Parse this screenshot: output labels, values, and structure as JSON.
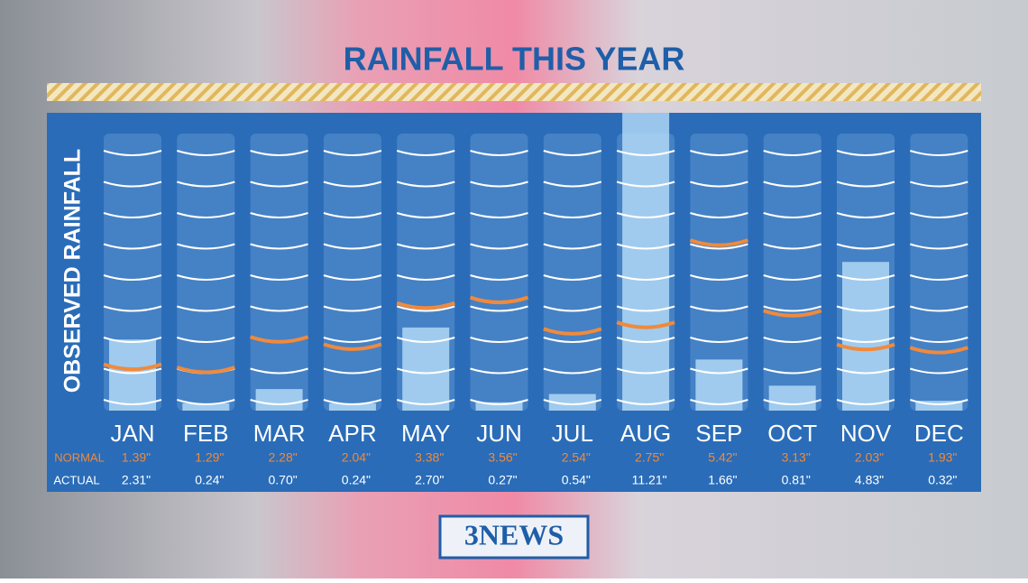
{
  "chart_data": {
    "type": "bar",
    "title": "RAINFALL THIS YEAR",
    "y_label": "OBSERVED RAINFALL",
    "categories": [
      "JAN",
      "FEB",
      "MAR",
      "APR",
      "MAY",
      "JUN",
      "JUL",
      "AUG",
      "SEP",
      "OCT",
      "NOV",
      "DEC"
    ],
    "ylim": [
      0,
      9
    ],
    "series": [
      {
        "name": "NORMAL",
        "color": "#f08a3c",
        "values": [
          1.39,
          1.29,
          2.28,
          2.04,
          3.38,
          3.56,
          2.54,
          2.75,
          5.42,
          3.13,
          2.03,
          1.93
        ],
        "value_labels": [
          "1.39\"",
          "1.29\"",
          "2.28\"",
          "2.04\"",
          "3.38\"",
          "3.56\"",
          "2.54\"",
          "2.75\"",
          "5.42\"",
          "3.13\"",
          "2.03\"",
          "1.93\""
        ]
      },
      {
        "name": "ACTUAL",
        "color": "#bfe4fb",
        "values": [
          2.31,
          0.24,
          0.7,
          0.24,
          2.7,
          0.27,
          0.54,
          11.21,
          1.66,
          0.81,
          4.83,
          0.32
        ],
        "value_labels": [
          "2.31\"",
          "0.24\"",
          "0.70\"",
          "0.24\"",
          "2.70\"",
          "0.27\"",
          "0.54\"",
          "11.21\"",
          "1.66\"",
          "0.81\"",
          "4.83\"",
          "0.32\""
        ]
      }
    ]
  },
  "logo": "3NEWS"
}
